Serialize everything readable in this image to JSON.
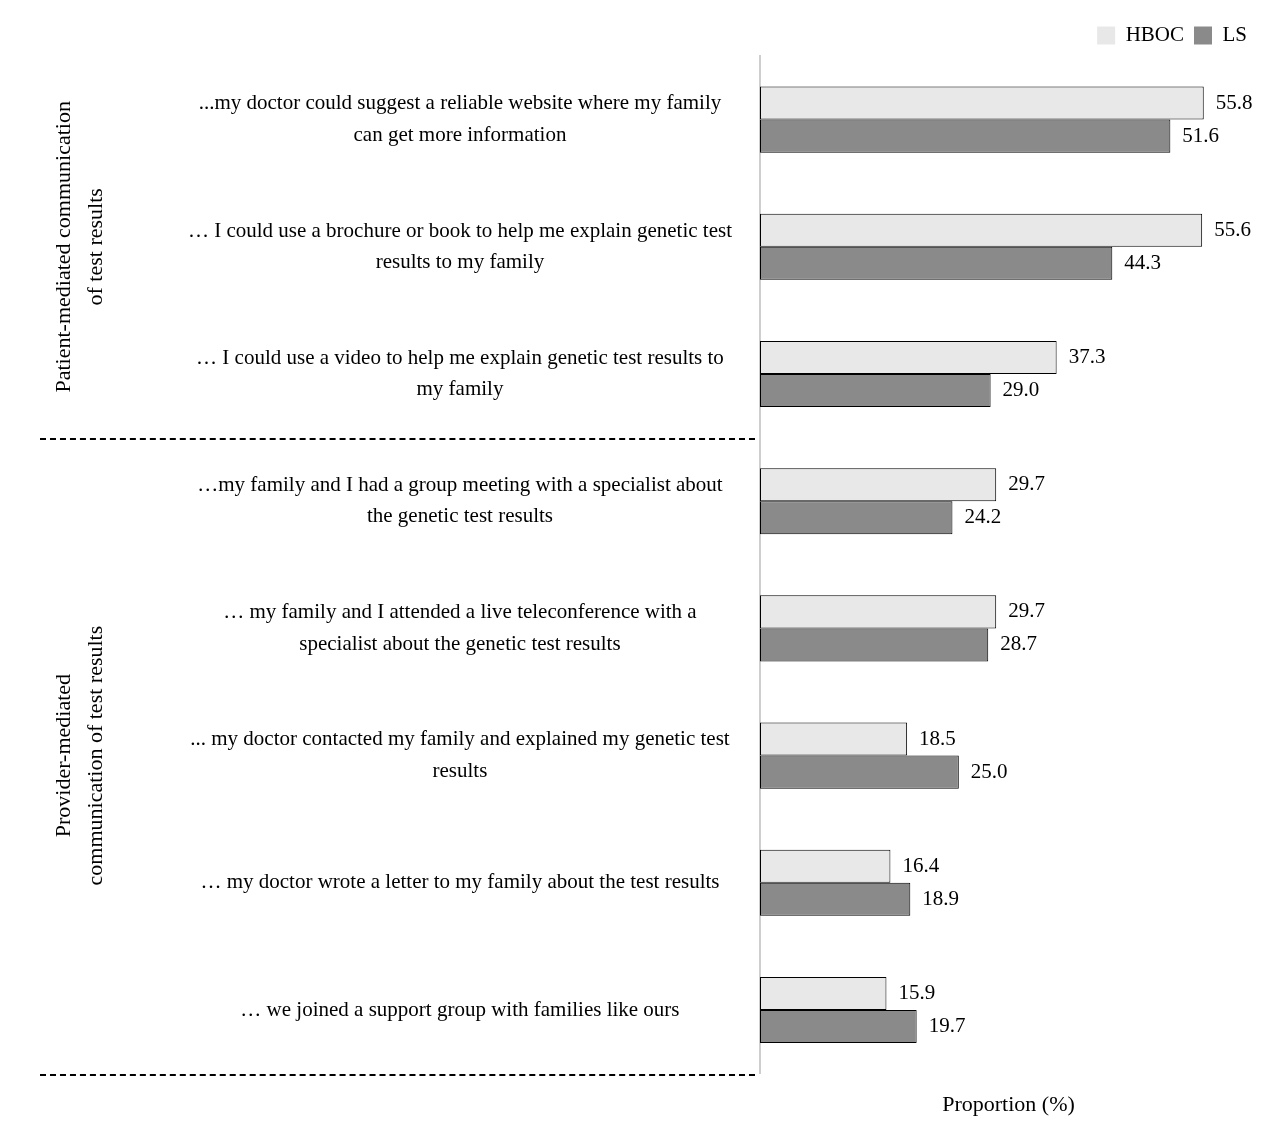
{
  "chart_data": {
    "type": "bar",
    "orientation": "horizontal",
    "categories": [
      "...my doctor could suggest a reliable website where my family can get more information",
      "… I could use a brochure or book to help me explain genetic test results to my family",
      "… I could use a video to help me explain genetic test results to my family",
      "…my family and I had a group meeting with a specialist about the genetic test results",
      "… my family and I attended a live teleconference with a specialist about the genetic test results",
      "... my doctor contacted my family and explained my genetic test results",
      "… my doctor wrote a letter to my family about the test results",
      "… we joined a support group with families like ours"
    ],
    "series": [
      {
        "name": "HBOC",
        "color": "#e8e8e8",
        "values": [
          55.8,
          55.6,
          37.3,
          29.7,
          29.7,
          18.5,
          16.4,
          15.9
        ],
        "value_labels": [
          "55.8",
          "55.6",
          "37.3",
          "29.7",
          "29.7",
          "18.5",
          "16.4",
          "15.9"
        ]
      },
      {
        "name": "LS",
        "color": "#8a8a8a",
        "values": [
          51.6,
          44.3,
          29.0,
          24.2,
          28.7,
          25.0,
          18.9,
          19.7
        ],
        "value_labels": [
          "51.6",
          "44.3",
          "29.0",
          "24.2",
          "28.7",
          "25.0",
          "18.9",
          "19.7"
        ]
      }
    ],
    "xlabel": "Proportion (%)",
    "annotations": [
      "Patient-mediated communication of test results",
      "Provider-mediated communication of test results"
    ],
    "legend": "top right",
    "grid": false,
    "relative": false
  }
}
